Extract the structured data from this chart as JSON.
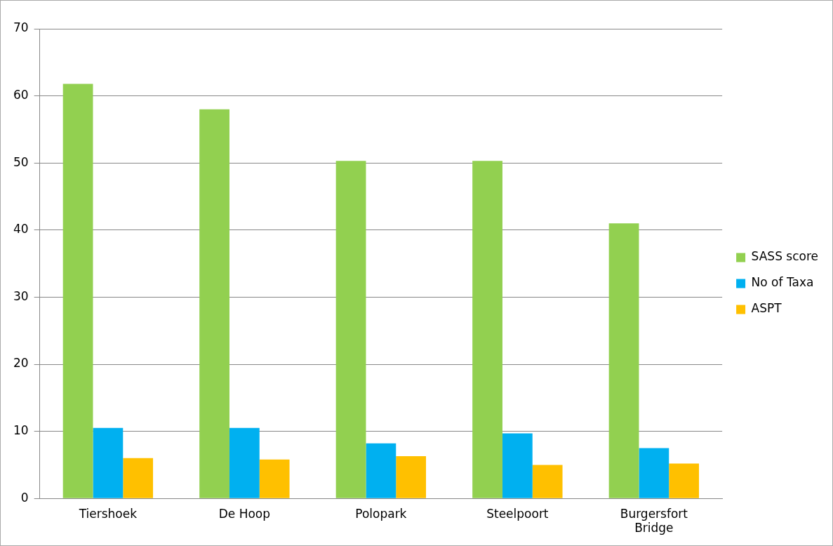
{
  "chart_data": {
    "type": "bar",
    "categories": [
      "Tiershoek",
      "De Hoop",
      "Polopark",
      "Steelpoort",
      "Burgersfort Bridge"
    ],
    "series": [
      {
        "name": "SASS score",
        "color": "#92d050",
        "values": [
          61.8,
          58.0,
          50.3,
          50.3,
          41.0
        ]
      },
      {
        "name": "No of Taxa",
        "color": "#00b0f0",
        "values": [
          10.5,
          10.5,
          8.2,
          9.7,
          7.5
        ]
      },
      {
        "name": "ASPT",
        "color": "#ffc000",
        "values": [
          6.0,
          5.8,
          6.3,
          5.0,
          5.2
        ]
      }
    ],
    "ylim": [
      0,
      70
    ],
    "yticks": [
      0,
      10,
      20,
      30,
      40,
      50,
      60,
      70
    ],
    "grid": "y",
    "legend": "right"
  }
}
